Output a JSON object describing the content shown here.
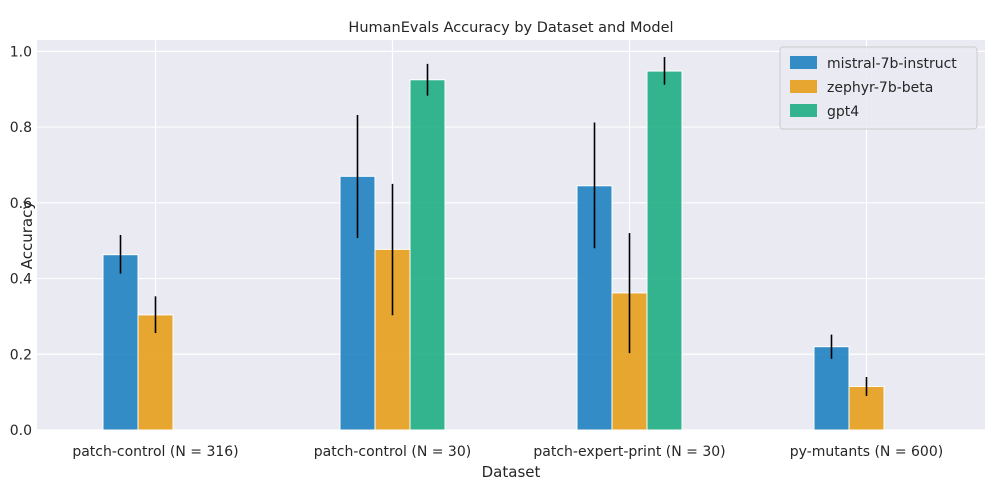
{
  "chart_data": {
    "type": "bar",
    "title": "HumanEvals Accuracy by Dataset and Model",
    "xlabel": "Dataset",
    "ylabel": "Accuracy",
    "ylim": [
      0,
      1.03
    ],
    "yticks": [
      0.0,
      0.2,
      0.4,
      0.6,
      0.8,
      1.0
    ],
    "ytick_labels": [
      "0.0",
      "0.2",
      "0.4",
      "0.6",
      "0.8",
      "1.0"
    ],
    "grid": true,
    "legend_position": "top-right",
    "categories": [
      "patch-control (N = 316)",
      "patch-control (N = 30)",
      "patch-expert-print (N = 30)",
      "py-mutants (N = 600)"
    ],
    "series": [
      {
        "name": "mistral-7b-instruct",
        "color": "#1f82c0",
        "values": [
          0.463,
          0.67,
          0.645,
          0.22
        ],
        "error_low": [
          0.413,
          0.507,
          0.48,
          0.188
        ],
        "error_high": [
          0.515,
          0.832,
          0.812,
          0.252
        ]
      },
      {
        "name": "zephyr-7b-beta",
        "color": "#e69f1a",
        "values": [
          0.304,
          0.477,
          0.362,
          0.115
        ],
        "error_low": [
          0.256,
          0.303,
          0.203,
          0.09
        ],
        "error_high": [
          0.353,
          0.65,
          0.52,
          0.14
        ]
      },
      {
        "name": "gpt4",
        "color": "#1fae84",
        "values": [
          null,
          0.925,
          0.948,
          null
        ],
        "error_low": [
          null,
          0.883,
          0.912,
          null
        ],
        "error_high": [
          null,
          0.967,
          0.985,
          null
        ]
      }
    ]
  }
}
